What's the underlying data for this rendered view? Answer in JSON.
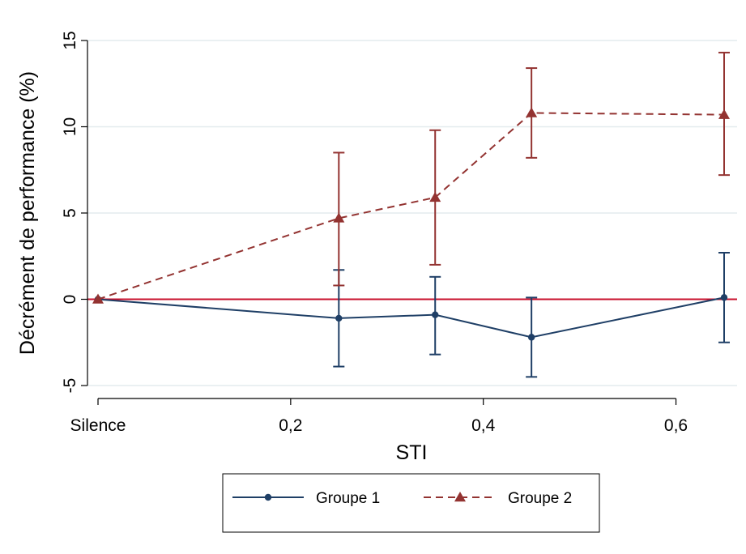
{
  "chart_data": {
    "type": "line",
    "xlabel": "STI",
    "ylabel": "Décrément de performance (%)",
    "x": [
      0,
      0.25,
      0.35,
      0.45,
      0.65
    ],
    "xlim": [
      0,
      0.65
    ],
    "x_ticks": [
      {
        "value": 0,
        "label": "Silence"
      },
      {
        "value": 0.2,
        "label": "0,2"
      },
      {
        "value": 0.4,
        "label": "0,4"
      },
      {
        "value": 0.6,
        "label": "0,6"
      }
    ],
    "ylim": [
      -5,
      15
    ],
    "y_ticks": [
      {
        "value": -5,
        "label": "-5"
      },
      {
        "value": 0,
        "label": "0"
      },
      {
        "value": 5,
        "label": "5"
      },
      {
        "value": 10,
        "label": "10"
      },
      {
        "value": 15,
        "label": "15"
      }
    ],
    "grid": true,
    "reference_line": {
      "y": 0,
      "color": "#c8102e"
    },
    "legend_position": "bottom",
    "series": [
      {
        "name": "Groupe 1",
        "color": "#1f3f66",
        "marker": "circle",
        "line_style": "solid",
        "values": [
          0,
          -1.1,
          -0.9,
          -2.2,
          0.1
        ],
        "error_low": [
          0,
          -3.9,
          -3.2,
          -4.5,
          -2.5
        ],
        "error_high": [
          0,
          1.7,
          1.3,
          0.1,
          2.7
        ]
      },
      {
        "name": "Groupe 2",
        "color": "#933331",
        "marker": "triangle",
        "line_style": "dashed",
        "values": [
          0,
          4.7,
          5.9,
          10.8,
          10.7
        ],
        "error_low": [
          0,
          0.8,
          2.0,
          8.2,
          7.2
        ],
        "error_high": [
          0,
          8.5,
          9.8,
          13.4,
          14.3
        ]
      }
    ]
  }
}
